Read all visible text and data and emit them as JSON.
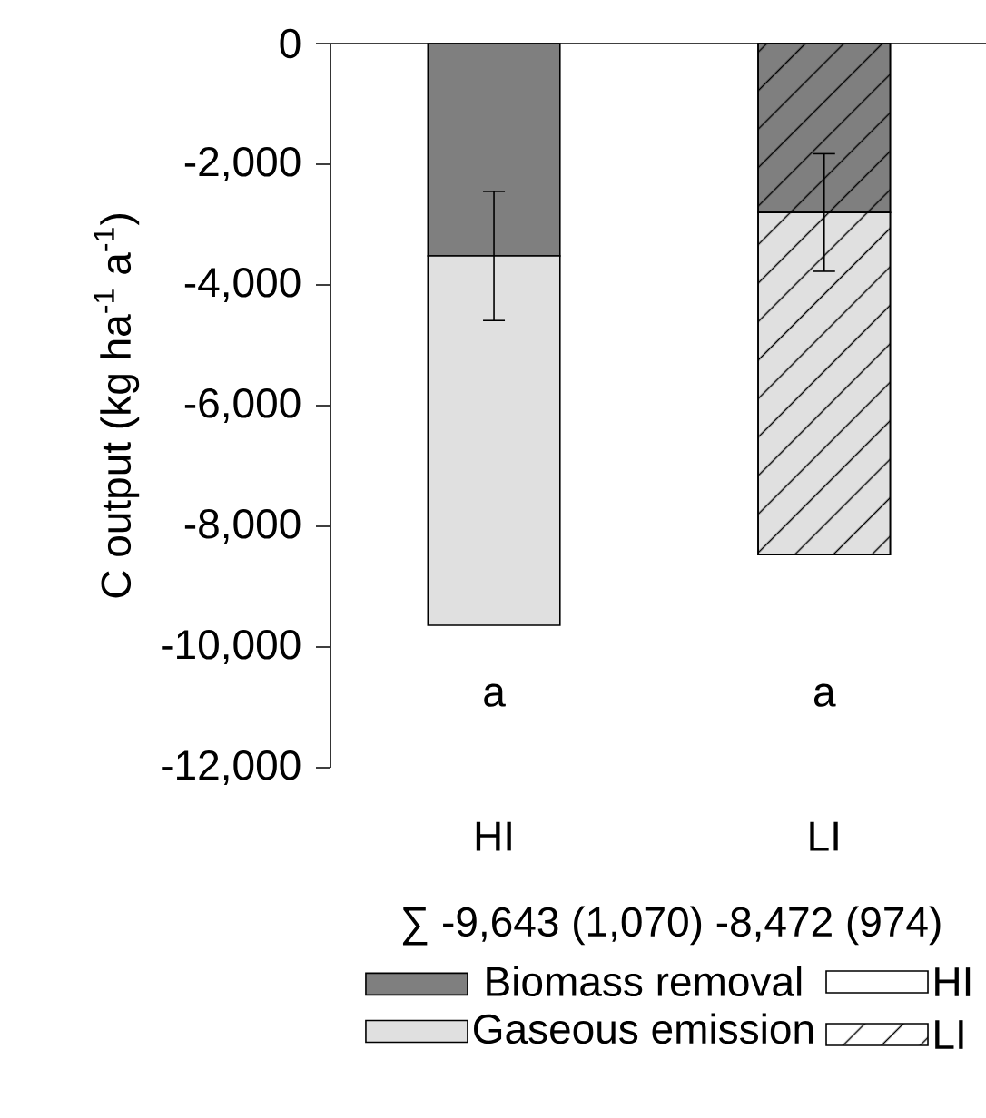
{
  "chart_data": {
    "type": "bar",
    "stacked": true,
    "ylabel": "C output (kg ha$^{-1}$ a$^{-1}$)",
    "categories": [
      "HI",
      "LI"
    ],
    "series": [
      {
        "name": "Biomass removal",
        "color": "#7f7f7f",
        "values": [
          -3520,
          -2800
        ],
        "errors": [
          1070,
          974
        ]
      },
      {
        "name": "Gaseous emission",
        "color": "#e0e0e0",
        "values": [
          -6120,
          -5670
        ]
      }
    ],
    "ylim": [
      -12000,
      0
    ],
    "yticks": [
      {
        "value": -12000,
        "label": "-12,000"
      },
      {
        "value": -10000,
        "label": "-10,000"
      },
      {
        "value": -8000,
        "label": "-8,000"
      },
      {
        "value": -6000,
        "label": "-6,000"
      },
      {
        "value": -4000,
        "label": "-4,000"
      },
      {
        "value": -2000,
        "label": "-2,000"
      },
      0
    ],
    "annotations": [
      "a",
      "a",
      "∑ -9,643 (1,070) -8,472 (974)"
    ],
    "legend": "bottom",
    "grid": false
  }
}
